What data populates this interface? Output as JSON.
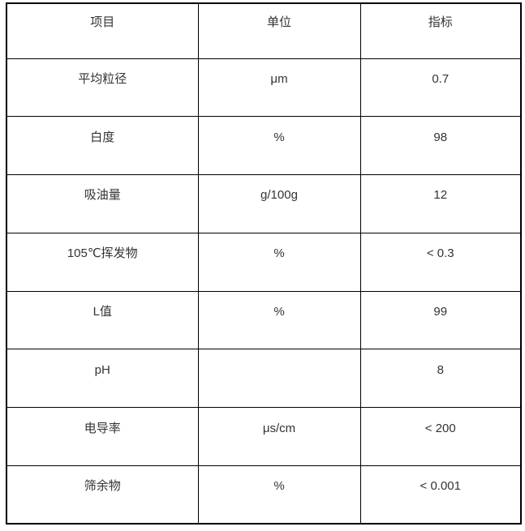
{
  "page": {
    "background": "#ffffff",
    "border_color": "#000000",
    "text_color": "#333333"
  },
  "table": {
    "columns": [
      {
        "label": "项目"
      },
      {
        "label": "单位"
      },
      {
        "label": "指标"
      }
    ],
    "rows": [
      {
        "item": "平均粒径",
        "unit": "μm",
        "value": "0.7"
      },
      {
        "item": "白度",
        "unit": "%",
        "value": "98"
      },
      {
        "item": "吸油量",
        "unit": "g/100g",
        "value": "12"
      },
      {
        "item": "105℃挥发物",
        "unit": "%",
        "value": "< 0.3"
      },
      {
        "item": "L值",
        "unit": "%",
        "value": "99"
      },
      {
        "item": "pH",
        "unit": "",
        "value": "8"
      },
      {
        "item": "电导率",
        "unit": "μs/cm",
        "value": "< 200"
      },
      {
        "item": "筛余物",
        "unit": "%",
        "value": "< 0.001"
      }
    ]
  }
}
